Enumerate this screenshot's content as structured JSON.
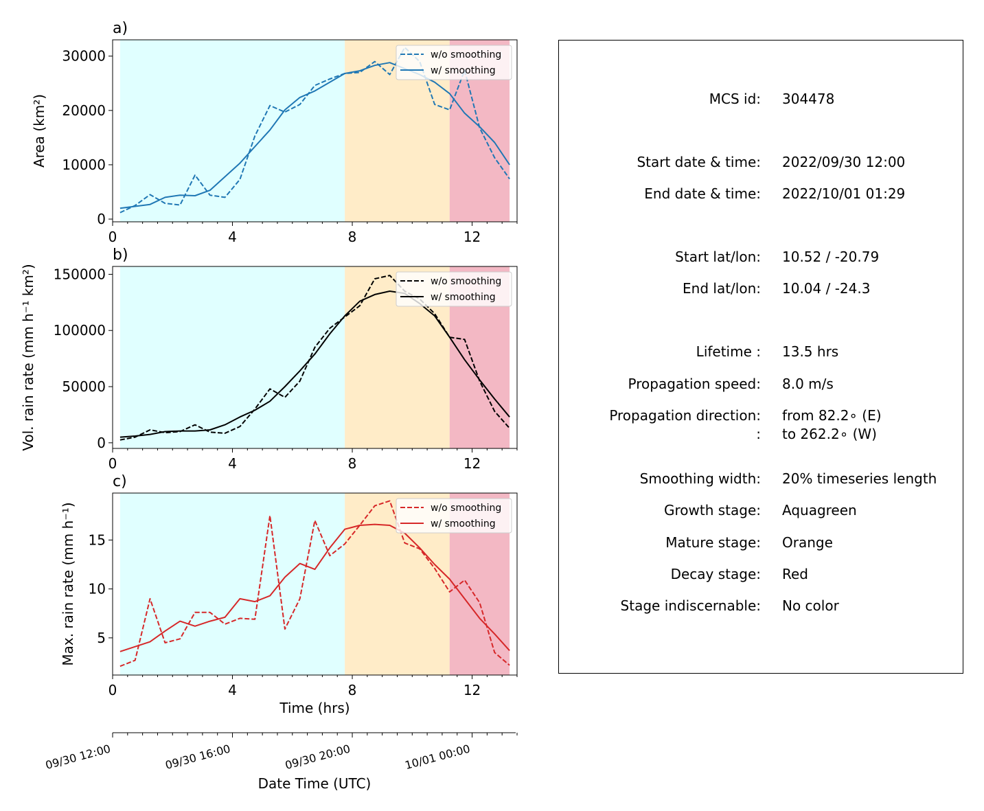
{
  "chart_data": [
    {
      "type": "line",
      "panel_label": "a)",
      "ylabel": "Area  (km²)",
      "ylim": [
        -500,
        33000
      ],
      "yticks": [
        0,
        10000,
        20000,
        30000
      ],
      "xlim": [
        0,
        13.5
      ],
      "xticks": [
        0,
        4,
        8,
        12
      ],
      "color": "#1f77b4",
      "stages": [
        {
          "name": "growth",
          "from": 0.25,
          "to": 7.75,
          "color": "#e0ffff"
        },
        {
          "name": "mature",
          "from": 7.75,
          "to": 11.25,
          "color": "#ffecc8"
        },
        {
          "name": "decay",
          "from": 11.25,
          "to": 13.25,
          "color": "#f3b8c4"
        }
      ],
      "series": [
        {
          "name": "w/o smoothing",
          "style": "dashed",
          "x": [
            0.25,
            0.75,
            1.25,
            1.75,
            2.25,
            2.75,
            3.25,
            3.75,
            4.25,
            4.75,
            5.25,
            5.75,
            6.25,
            6.75,
            7.25,
            7.75,
            8.25,
            8.75,
            9.25,
            9.75,
            10.25,
            10.75,
            11.25,
            11.75,
            12.25,
            12.75,
            13.25
          ],
          "y": [
            1200,
            2500,
            4500,
            2900,
            2600,
            8100,
            4400,
            4000,
            7300,
            15300,
            20900,
            19700,
            21100,
            24600,
            25800,
            26800,
            27000,
            29000,
            26600,
            31600,
            29000,
            21100,
            20100,
            27400,
            16800,
            11300,
            7400
          ]
        },
        {
          "name": "w/ smoothing",
          "style": "solid",
          "x": [
            0.25,
            1.25,
            1.75,
            2.25,
            2.75,
            3.25,
            4.25,
            5.25,
            5.75,
            6.25,
            6.75,
            7.75,
            8.25,
            8.75,
            9.25,
            9.75,
            10.25,
            10.75,
            11.25,
            11.75,
            12.25,
            12.75,
            13.25
          ],
          "y": [
            2000,
            2700,
            4000,
            4400,
            4300,
            5300,
            10300,
            16400,
            20100,
            22400,
            23600,
            26800,
            27300,
            28300,
            28800,
            27700,
            26600,
            25200,
            23100,
            19500,
            17000,
            14100,
            10000
          ]
        }
      ]
    },
    {
      "type": "line",
      "panel_label": "b)",
      "ylabel": "Vol. rain rate (mm h⁻¹ km²)",
      "ylim": [
        -5000,
        157000
      ],
      "yticks": [
        0,
        50000,
        100000,
        150000
      ],
      "xlim": [
        0,
        13.5
      ],
      "xticks": [
        0,
        4,
        8,
        12
      ],
      "color": "#000000",
      "stages": [
        {
          "name": "growth",
          "from": 0.25,
          "to": 7.75,
          "color": "#e0ffff"
        },
        {
          "name": "mature",
          "from": 7.75,
          "to": 11.25,
          "color": "#ffecc8"
        },
        {
          "name": "decay",
          "from": 11.25,
          "to": 13.25,
          "color": "#f3b8c4"
        }
      ],
      "series": [
        {
          "name": "w/o smoothing",
          "style": "dashed",
          "x": [
            0.25,
            0.75,
            1.25,
            1.75,
            2.25,
            2.75,
            3.25,
            3.75,
            4.25,
            4.75,
            5.25,
            5.75,
            6.25,
            6.75,
            7.25,
            7.75,
            8.25,
            8.75,
            9.25,
            9.75,
            10.25,
            10.75,
            11.25,
            11.75,
            12.25,
            12.75,
            13.25
          ],
          "y": [
            2500,
            5000,
            11500,
            9000,
            10000,
            16000,
            9500,
            8500,
            14500,
            30000,
            48000,
            40500,
            55000,
            85000,
            102000,
            112000,
            122000,
            146000,
            149000,
            135000,
            128000,
            115000,
            94000,
            92000,
            55000,
            28000,
            13000
          ]
        },
        {
          "name": "w/ smoothing",
          "style": "solid",
          "x": [
            0.25,
            0.75,
            1.25,
            1.75,
            2.25,
            2.75,
            3.25,
            3.75,
            4.25,
            4.75,
            5.25,
            5.75,
            6.25,
            6.75,
            7.25,
            7.75,
            8.25,
            8.75,
            9.25,
            9.75,
            10.25,
            10.75,
            11.25,
            11.75,
            12.25,
            12.75,
            13.25
          ],
          "y": [
            5000,
            6000,
            7500,
            10000,
            10500,
            10500,
            11500,
            16000,
            23000,
            29000,
            37000,
            50000,
            64000,
            79000,
            97000,
            113000,
            126000,
            132000,
            135000,
            133000,
            124000,
            113000,
            94000,
            74000,
            56000,
            39000,
            23000
          ]
        }
      ]
    },
    {
      "type": "line",
      "panel_label": "c)",
      "ylabel": "Max. rain rate  (mm h⁻¹)",
      "ylim": [
        1.2,
        19.8
      ],
      "yticks": [
        5,
        10,
        15
      ],
      "xlim": [
        0,
        13.5
      ],
      "xticks": [
        0,
        4,
        8,
        12
      ],
      "xlabel": "Time (hrs)",
      "color": "#d62728",
      "stages": [
        {
          "name": "growth",
          "from": 0.25,
          "to": 7.75,
          "color": "#e0ffff"
        },
        {
          "name": "mature",
          "from": 7.75,
          "to": 11.25,
          "color": "#ffecc8"
        },
        {
          "name": "decay",
          "from": 11.25,
          "to": 13.25,
          "color": "#f3b8c4"
        }
      ],
      "series": [
        {
          "name": "w/o smoothing",
          "style": "dashed",
          "x": [
            0.25,
            0.75,
            1.25,
            1.75,
            2.25,
            2.75,
            3.25,
            3.75,
            4.25,
            4.75,
            5.25,
            5.75,
            6.25,
            6.75,
            7.25,
            7.75,
            8.25,
            8.75,
            9.25,
            9.75,
            10.25,
            10.75,
            11.25,
            11.75,
            12.25,
            12.75,
            13.25
          ],
          "y": [
            2.1,
            2.7,
            9.0,
            4.5,
            4.9,
            7.6,
            7.6,
            6.4,
            7.0,
            6.9,
            17.5,
            5.9,
            9.0,
            17.0,
            13.4,
            14.6,
            16.5,
            18.5,
            19.0,
            14.7,
            14.1,
            12.1,
            9.7,
            10.9,
            8.6,
            3.5,
            2.2
          ]
        },
        {
          "name": "w/ smoothing",
          "style": "solid",
          "x": [
            0.25,
            1.25,
            1.75,
            2.25,
            2.75,
            3.25,
            3.75,
            4.25,
            4.75,
            5.25,
            5.75,
            6.25,
            6.75,
            7.25,
            7.75,
            8.25,
            8.75,
            9.25,
            9.75,
            10.25,
            10.75,
            11.25,
            11.75,
            12.25,
            12.75,
            13.25
          ],
          "y": [
            3.6,
            4.6,
            5.7,
            6.7,
            6.2,
            6.7,
            7.1,
            9.0,
            8.7,
            9.3,
            11.2,
            12.6,
            12.0,
            14.2,
            16.1,
            16.5,
            16.6,
            16.5,
            15.7,
            14.2,
            12.5,
            11.0,
            9.0,
            7.0,
            5.4,
            3.7
          ]
        }
      ]
    },
    {
      "type": "axis",
      "xlabel": "Date Time (UTC)",
      "tick_labels": [
        "09/30 12:00",
        "09/30 16:00",
        "09/30 20:00",
        "10/01 00:00"
      ],
      "tick_hours": [
        0,
        4,
        8,
        12
      ],
      "minor_tick_step_hours": 0.5,
      "xlim": [
        0,
        13.5
      ]
    }
  ],
  "info": {
    "mcs_id": {
      "label": "MCS id:",
      "value": "304478"
    },
    "start_time": {
      "label": "Start date & time:",
      "value": "2022/09/30 12:00"
    },
    "end_time": {
      "label": "End date & time:",
      "value": "2022/10/01 01:29"
    },
    "start_latlon": {
      "label": "Start lat/lon:",
      "value": "10.52 / -20.79"
    },
    "end_latlon": {
      "label": "End lat/lon:",
      "value": "10.04 / -24.3"
    },
    "lifetime": {
      "label": "Lifetime :",
      "value": "13.5 hrs"
    },
    "prop_speed": {
      "label": "Propagation speed:",
      "value": "8.0 m/s"
    },
    "prop_dir_from": {
      "label": "Propagation direction:",
      "value": "from  82.2∘ (E)"
    },
    "prop_dir_to": {
      "label": ":",
      "value": "to   262.2∘ (W)"
    },
    "smoothing": {
      "label": "Smoothing width:",
      "value": "20% timeseries length"
    },
    "growth": {
      "label": "Growth stage:",
      "value": "Aquagreen"
    },
    "mature": {
      "label": "Mature stage:",
      "value": "Orange"
    },
    "decay": {
      "label": "Decay stage:",
      "value": "Red"
    },
    "indiscernable": {
      "label": "Stage indiscernable:",
      "value": "No color"
    }
  }
}
